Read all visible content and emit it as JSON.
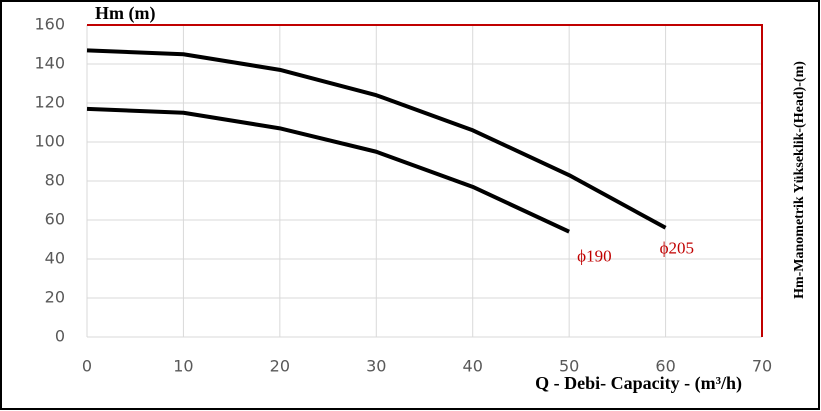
{
  "chart_data": {
    "type": "line",
    "title": "Hm (m)",
    "x_label": "Q - Debi- Capacity - (m³/h)",
    "y2_label": "Hm-Manometrik Yükseklik-(Head)-(m)",
    "series": [
      {
        "name": "ϕ205",
        "color": "#000000",
        "label_color": "#c00000",
        "x": [
          0,
          10,
          20,
          30,
          40,
          50,
          60
        ],
        "values": [
          147,
          145,
          137,
          124,
          106,
          83,
          56
        ]
      },
      {
        "name": "ϕ190",
        "color": "#000000",
        "label_color": "#c00000",
        "x": [
          0,
          10,
          20,
          30,
          40,
          50
        ],
        "values": [
          117,
          115,
          107,
          95,
          77,
          54
        ]
      }
    ],
    "xlim": [
      0,
      70
    ],
    "xticks": [
      0,
      10,
      20,
      30,
      40,
      50,
      60,
      70
    ],
    "ylim": [
      0,
      160
    ],
    "yticks": [
      0,
      20,
      40,
      60,
      80,
      100,
      120,
      140,
      160
    ],
    "grid": true,
    "frame_color": "#c00000"
  }
}
